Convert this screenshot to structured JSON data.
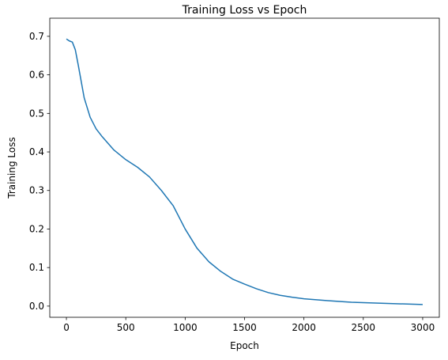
{
  "chart_data": {
    "type": "line",
    "title": "Training Loss vs Epoch",
    "x_label": "Epoch",
    "y_label": "Training Loss",
    "x": [
      0,
      25,
      50,
      75,
      100,
      150,
      200,
      250,
      300,
      400,
      500,
      600,
      700,
      800,
      900,
      1000,
      1100,
      1200,
      1300,
      1400,
      1500,
      1600,
      1700,
      1800,
      1900,
      2000,
      2200,
      2400,
      2600,
      2800,
      3000
    ],
    "series": [
      {
        "name": "Training Loss",
        "color": "#1f77b4",
        "values": [
          0.693,
          0.688,
          0.685,
          0.665,
          0.625,
          0.54,
          0.49,
          0.46,
          0.44,
          0.405,
          0.38,
          0.36,
          0.335,
          0.3,
          0.26,
          0.2,
          0.15,
          0.115,
          0.09,
          0.07,
          0.057,
          0.045,
          0.035,
          0.028,
          0.023,
          0.019,
          0.014,
          0.01,
          0.008,
          0.006,
          0.004
        ]
      }
    ],
    "xlim": [
      -140,
      3140
    ],
    "ylim": [
      -0.029,
      0.747
    ],
    "xticks": [
      0,
      500,
      1000,
      1500,
      2000,
      2500,
      3000
    ],
    "yticks": [
      {
        "value": 0,
        "label": "0.0"
      },
      0.1,
      0.2,
      0.3,
      0.4,
      0.5,
      0.6,
      0.7
    ]
  }
}
